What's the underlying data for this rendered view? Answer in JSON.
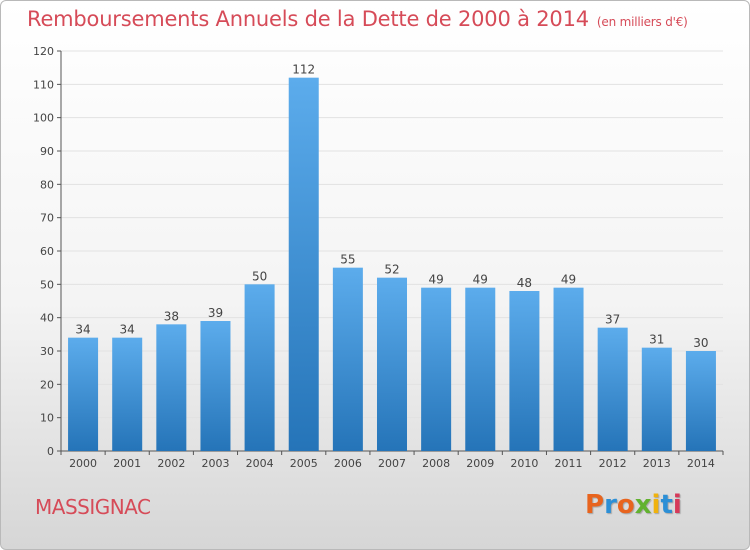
{
  "header": {
    "title": "Remboursements Annuels de la Dette de 2000 à 2014",
    "unit": "(en milliers d'€)"
  },
  "footer": {
    "commune": "MASSIGNAC",
    "logo": "Proxiti"
  },
  "colors": {
    "title": "#d64b58",
    "bar_top": "#5cacec",
    "bar_bottom": "#2574b8",
    "logo_letters": [
      "#e8641e",
      "#2c8fd6",
      "#e8641e",
      "#62b22f",
      "#f0b20e",
      "#2c8fd6",
      "#d63a5a"
    ]
  },
  "chart_data": {
    "type": "bar",
    "title": "Remboursements Annuels de la Dette de 2000 à 2014",
    "xlabel": "",
    "ylabel": "",
    "categories": [
      "2000",
      "2001",
      "2002",
      "2003",
      "2004",
      "2005",
      "2006",
      "2007",
      "2008",
      "2009",
      "2010",
      "2011",
      "2012",
      "2013",
      "2014"
    ],
    "values": [
      34,
      34,
      38,
      39,
      50,
      112,
      55,
      52,
      49,
      49,
      48,
      49,
      37,
      31,
      30
    ],
    "ylim": [
      0,
      120
    ],
    "yticks": [
      0,
      10,
      20,
      30,
      40,
      50,
      60,
      70,
      80,
      90,
      100,
      110,
      120
    ],
    "grid": true,
    "legend": "none"
  }
}
